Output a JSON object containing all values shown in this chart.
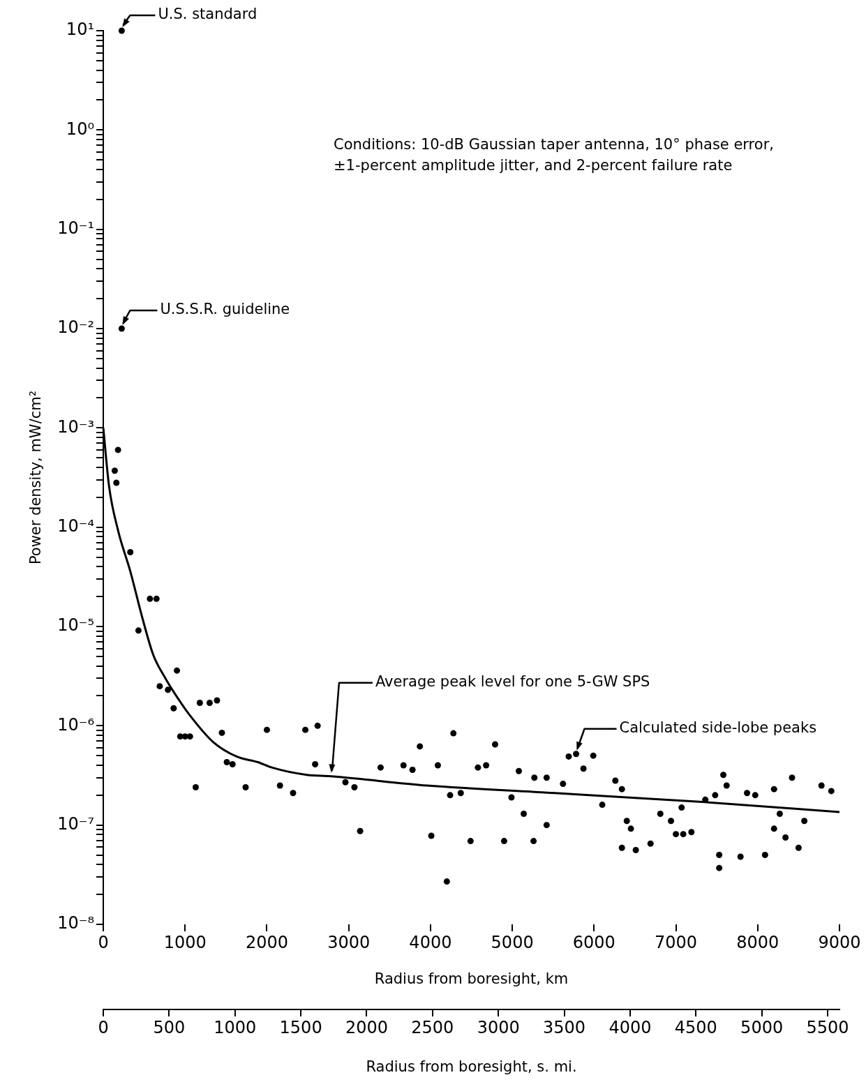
{
  "chart_data": {
    "type": "scatter",
    "xlabel": "Radius from boresight, km",
    "ylabel": "Power density, mW/cm²",
    "x2label": "Radius from boresight, s. mi.",
    "xlim": [
      0,
      9000
    ],
    "xticks": [
      0,
      1000,
      2000,
      3000,
      4000,
      5000,
      6000,
      7000,
      8000,
      9000
    ],
    "x2lim": [
      0,
      5590
    ],
    "x2ticks": [
      0,
      500,
      1000,
      1500,
      2000,
      2500,
      3000,
      3500,
      4000,
      4500,
      5000,
      5500
    ],
    "ylim": [
      1e-08,
      10
    ],
    "log": true,
    "grid": false,
    "legend": false,
    "marker": "circle",
    "yticks": [
      {
        "value": 10,
        "label": "10¹"
      },
      {
        "value": 1,
        "label": "10⁰"
      },
      {
        "value": 0.1,
        "label": "10⁻¹"
      },
      {
        "value": 0.01,
        "label": "10⁻²"
      },
      {
        "value": 0.001,
        "label": "10⁻³"
      },
      {
        "value": 0.0001,
        "label": "10⁻⁴"
      },
      {
        "value": 1e-05,
        "label": "10⁻⁵"
      },
      {
        "value": 1e-06,
        "label": "10⁻⁶"
      },
      {
        "value": 1e-07,
        "label": "10⁻⁷"
      },
      {
        "value": 1e-08,
        "label": "10⁻⁸"
      },
      {
        "value": 2e-08,
        "label": null
      },
      {
        "value": 3e-08,
        "label": null
      },
      {
        "value": 4e-08,
        "label": null
      },
      {
        "value": 5e-08,
        "label": null
      },
      {
        "value": 6e-08,
        "label": null
      },
      {
        "value": 7e-08,
        "label": null
      },
      {
        "value": 8e-08,
        "label": null
      },
      {
        "value": 9e-08,
        "label": null
      },
      {
        "value": 2e-07,
        "label": null
      },
      {
        "value": 3e-07,
        "label": null
      },
      {
        "value": 4e-07,
        "label": null
      },
      {
        "value": 5e-07,
        "label": null
      },
      {
        "value": 6e-07,
        "label": null
      },
      {
        "value": 7e-07,
        "label": null
      },
      {
        "value": 8e-07,
        "label": null
      },
      {
        "value": 9e-07,
        "label": null
      },
      {
        "value": 2e-06,
        "label": null
      },
      {
        "value": 3e-06,
        "label": null
      },
      {
        "value": 4e-06,
        "label": null
      },
      {
        "value": 5e-06,
        "label": null
      },
      {
        "value": 6e-06,
        "label": null
      },
      {
        "value": 7e-06,
        "label": null
      },
      {
        "value": 8e-06,
        "label": null
      },
      {
        "value": 9e-06,
        "label": null
      },
      {
        "value": 2e-05,
        "label": null
      },
      {
        "value": 3e-05,
        "label": null
      },
      {
        "value": 4e-05,
        "label": null
      },
      {
        "value": 5e-05,
        "label": null
      },
      {
        "value": 6e-05,
        "label": null
      },
      {
        "value": 7e-05,
        "label": null
      },
      {
        "value": 8e-05,
        "label": null
      },
      {
        "value": 9e-05,
        "label": null
      },
      {
        "value": 0.0002,
        "label": null
      },
      {
        "value": 0.0003,
        "label": null
      },
      {
        "value": 0.0004,
        "label": null
      },
      {
        "value": 0.0005,
        "label": null
      },
      {
        "value": 0.0006,
        "label": null
      },
      {
        "value": 0.0007,
        "label": null
      },
      {
        "value": 0.0008,
        "label": null
      },
      {
        "value": 0.0009,
        "label": null
      },
      {
        "value": 0.002,
        "label": null
      },
      {
        "value": 0.003,
        "label": null
      },
      {
        "value": 0.004,
        "label": null
      },
      {
        "value": 0.005,
        "label": null
      },
      {
        "value": 0.006,
        "label": null
      },
      {
        "value": 0.007,
        "label": null
      },
      {
        "value": 0.008,
        "label": null
      },
      {
        "value": 0.009,
        "label": null
      },
      {
        "value": 0.02,
        "label": null
      },
      {
        "value": 0.03,
        "label": null
      },
      {
        "value": 0.04,
        "label": null
      },
      {
        "value": 0.05,
        "label": null
      },
      {
        "value": 0.06,
        "label": null
      },
      {
        "value": 0.07,
        "label": null
      },
      {
        "value": 0.08,
        "label": null
      },
      {
        "value": 0.09,
        "label": null
      },
      {
        "value": 0.2,
        "label": null
      },
      {
        "value": 0.3,
        "label": null
      },
      {
        "value": 0.4,
        "label": null
      },
      {
        "value": 0.5,
        "label": null
      },
      {
        "value": 0.6,
        "label": null
      },
      {
        "value": 0.7,
        "label": null
      },
      {
        "value": 0.8,
        "label": null
      },
      {
        "value": 0.9,
        "label": null
      },
      {
        "value": 2,
        "label": null
      },
      {
        "value": 3,
        "label": null
      },
      {
        "value": 4,
        "label": null
      },
      {
        "value": 5,
        "label": null
      },
      {
        "value": 6,
        "label": null
      },
      {
        "value": 7,
        "label": null
      },
      {
        "value": 8,
        "label": null
      },
      {
        "value": 9,
        "label": null
      }
    ],
    "series": [
      {
        "type": "scatter",
        "color": "#000000",
        "x": [
          225,
          225,
          180,
          140,
          160,
          330,
          570,
          650,
          430,
          900,
          690,
          790,
          860,
          1180,
          1300,
          1390,
          940,
          1000,
          1060,
          1450,
          1510,
          1580,
          1130,
          1740,
          2000,
          2470,
          2620,
          2590,
          2160,
          2320,
          2960,
          3070,
          3140,
          3390,
          3670,
          3780,
          3870,
          4090,
          4010,
          4200,
          4240,
          4370,
          4280,
          4490,
          4580,
          4680,
          4790,
          4900,
          4990,
          5080,
          5140,
          5270,
          5260,
          5420,
          5420,
          5620,
          5690,
          5780,
          5990,
          5870,
          6100,
          6260,
          6340,
          6400,
          6450,
          6340,
          6510,
          6690,
          6810,
          6940,
          7070,
          7000,
          7090,
          7190,
          7360,
          7480,
          7580,
          7620,
          7530,
          7530,
          7790,
          7870,
          7970,
          8090,
          8200,
          8270,
          8200,
          8340,
          8420,
          8500,
          8570,
          8780,
          8900
        ],
        "values": [
          10,
          0.01,
          0.0006,
          0.00037,
          0.00028,
          5.6e-05,
          1.9e-05,
          1.9e-05,
          9.1e-06,
          3.6e-06,
          2.5e-06,
          2.3e-06,
          1.5e-06,
          1.7e-06,
          1.7e-06,
          1.8e-06,
          7.8e-07,
          7.8e-07,
          7.8e-07,
          8.5e-07,
          4.3e-07,
          4.1e-07,
          2.4e-07,
          2.4e-07,
          9.1e-07,
          9.1e-07,
          1e-06,
          4.1e-07,
          2.5e-07,
          2.1e-07,
          2.7e-07,
          2.4e-07,
          8.7e-08,
          3.8e-07,
          4e-07,
          3.6e-07,
          6.2e-07,
          4e-07,
          7.8e-08,
          2.7e-08,
          2e-07,
          2.1e-07,
          8.4e-07,
          6.9e-08,
          3.8e-07,
          4e-07,
          6.5e-07,
          6.9e-08,
          1.9e-07,
          3.5e-07,
          1.3e-07,
          3e-07,
          6.9e-08,
          3e-07,
          1e-07,
          2.6e-07,
          4.9e-07,
          5.2e-07,
          5e-07,
          3.7e-07,
          1.6e-07,
          2.8e-07,
          2.3e-07,
          1.1e-07,
          9.2e-08,
          5.9e-08,
          5.6e-08,
          6.5e-08,
          1.3e-07,
          1.1e-07,
          1.5e-07,
          8.1e-08,
          8.1e-08,
          8.5e-08,
          1.8e-07,
          2e-07,
          3.2e-07,
          2.5e-07,
          5e-08,
          3.7e-08,
          4.8e-08,
          2.1e-07,
          2e-07,
          5e-08,
          2.3e-07,
          1.3e-07,
          9.2e-08,
          7.5e-08,
          3e-07,
          5.9e-08,
          1.1e-07,
          2.5e-07,
          2.2e-07
        ]
      },
      {
        "type": "line",
        "color": "#000000",
        "marker": "none",
        "x": [
          0,
          70,
          180,
          330,
          480,
          610,
          760,
          910,
          1050,
          1340,
          1630,
          1890,
          2060,
          2490,
          2780,
          3960,
          5520,
          7360,
          9000
        ],
        "values": [
          0.001,
          0.00026,
          9.3e-05,
          3.6e-05,
          1.2e-05,
          5.2e-06,
          3e-06,
          1.9e-06,
          1.3e-06,
          6.9e-07,
          4.9e-07,
          4.3e-07,
          3.8e-07,
          3.2e-07,
          3.1e-07,
          2.5e-07,
          2.1e-07,
          1.7e-07,
          1.35e-07
        ]
      }
    ],
    "annotations": [
      {
        "text": "U.S. standard",
        "x": 225,
        "y": 10
      },
      {
        "text": "U.S.S.R. guideline",
        "x": 225,
        "y": 0.01
      },
      "Conditions: 10-dB Gaussian taper antenna, 10° phase error, ±1-percent amplitude jitter, and 2-percent failure rate",
      {
        "text": "Average peak level for one 5-GW SPS",
        "x": 2780,
        "y": 3.1e-07
      },
      {
        "text": "Calculated side-lobe peaks",
        "x": 5780,
        "y": 5.2e-07
      }
    ]
  }
}
